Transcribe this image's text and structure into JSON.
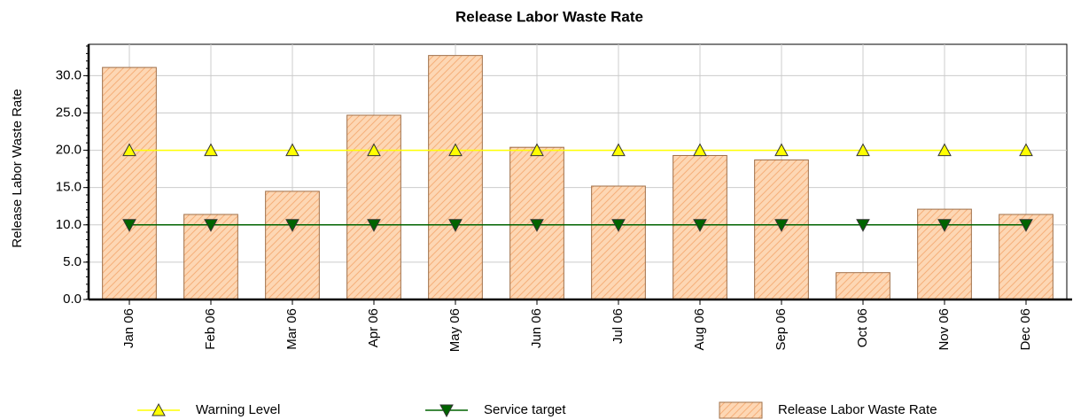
{
  "chart_data": {
    "type": "bar",
    "title": "Release Labor Waste Rate",
    "y_label": "Release Labor Waste Rate",
    "categories": [
      "Jan 06",
      "Feb 06",
      "Mar 06",
      "Apr 06",
      "May 06",
      "Jun 06",
      "Jul 06",
      "Aug 06",
      "Sep 06",
      "Oct 06",
      "Nov 06",
      "Dec 06"
    ],
    "series": [
      {
        "name": "Release Labor Waste Rate",
        "type": "bar",
        "color": "#fdd7b4",
        "values": [
          31.1,
          11.4,
          14.5,
          24.7,
          32.7,
          20.4,
          15.2,
          19.3,
          18.7,
          3.6,
          12.1,
          11.4
        ]
      },
      {
        "name": "Warning Level",
        "type": "line",
        "marker": "triangle-up",
        "color": "#ffff00",
        "values": [
          20,
          20,
          20,
          20,
          20,
          20,
          20,
          20,
          20,
          20,
          20,
          20
        ]
      },
      {
        "name": "Service target",
        "type": "line",
        "marker": "triangle-down",
        "color": "#006400",
        "values": [
          10,
          10,
          10,
          10,
          10,
          10,
          10,
          10,
          10,
          10,
          10,
          10
        ]
      }
    ],
    "legend_order": [
      1,
      2,
      0
    ],
    "ylim": [
      0,
      34.2
    ],
    "yticks": [
      {
        "value": 0,
        "label": "0.0"
      },
      {
        "value": 5,
        "label": "5.0"
      },
      {
        "value": 10,
        "label": "10.0"
      },
      {
        "value": 15,
        "label": "15.0"
      },
      {
        "value": 20,
        "label": "20.0"
      },
      {
        "value": 25,
        "label": "25.0"
      },
      {
        "value": 30,
        "label": "30.0"
      }
    ],
    "grid": true,
    "legend": "bottom"
  }
}
